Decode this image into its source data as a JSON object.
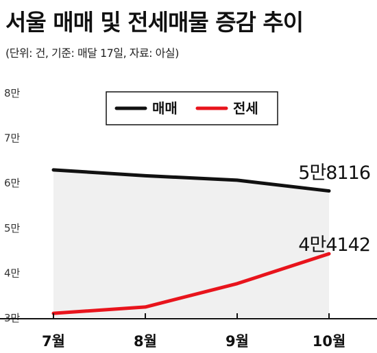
{
  "title": "서울 매매 및 전세매물 증감 추이",
  "subtitle": "(단위: 건, 기준: 매달 17일, 자료: 아실)",
  "chart_data": {
    "type": "line",
    "categories": [
      "7월",
      "8월",
      "9월",
      "10월"
    ],
    "y_tick_labels": [
      "3만",
      "4만",
      "5만",
      "6만",
      "7만",
      "8만"
    ],
    "y_ticks": [
      30000,
      40000,
      50000,
      60000,
      70000,
      80000
    ],
    "ylim": [
      30000,
      80000
    ],
    "legend_position": "top",
    "grid": false,
    "series": [
      {
        "name": "매매",
        "color": "#111111",
        "values": [
          62800,
          61500,
          60500,
          58116
        ],
        "end_label": "5만8116"
      },
      {
        "name": "전세",
        "color": "#e8141c",
        "values": [
          30900,
          32300,
          37500,
          44142
        ],
        "end_label": "4만4142"
      }
    ]
  }
}
